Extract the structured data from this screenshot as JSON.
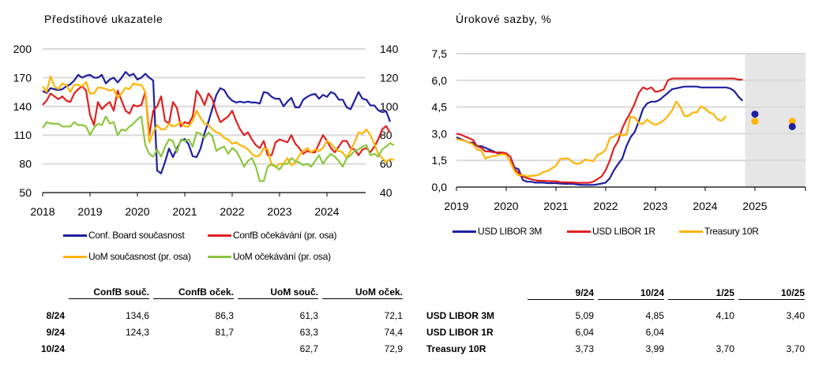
{
  "left_panel": {
    "title": "Předstihové ukazatele",
    "legend": [
      {
        "label": "Conf. Board současnost",
        "color": "#1f1fa0"
      },
      {
        "label": "ConfB očekávání (pr. osa)",
        "color": "#e02020"
      },
      {
        "label": "UoM současnost (pr. osa)",
        "color": "#ffb400"
      },
      {
        "label": "UoM očekávání (pr. osa)",
        "color": "#8cc63f"
      }
    ],
    "table": {
      "columns": [
        "ConfB souč.",
        "ConfB oček.",
        "UoM souč.",
        "UoM oček."
      ],
      "rows": [
        {
          "label": "8/24",
          "values": [
            "134,6",
            "86,3",
            "61,3",
            "72,1"
          ]
        },
        {
          "label": "9/24",
          "values": [
            "124,3",
            "81,7",
            "63,3",
            "74,4"
          ]
        },
        {
          "label": "10/24",
          "values": [
            "",
            "",
            "62,7",
            "72,9"
          ]
        }
      ]
    }
  },
  "right_panel": {
    "title": "Úrokové sazby, %",
    "legend": [
      {
        "label": "USD LIBOR 3M",
        "color": "#1f1fa0"
      },
      {
        "label": "USD LIBOR 1R",
        "color": "#e02020"
      },
      {
        "label": "Treasury 10R",
        "color": "#ffb400"
      }
    ],
    "table": {
      "columns": [
        "9/24",
        "10/24",
        "1/25",
        "10/25"
      ],
      "rows": [
        {
          "label": "USD LIBOR 3M",
          "values": [
            "5,09",
            "4,85",
            "4,10",
            "3,40"
          ]
        },
        {
          "label": "USD LIBOR 1R",
          "values": [
            "6,04",
            "6,04",
            "",
            ""
          ]
        },
        {
          "label": "Treasury 10R",
          "values": [
            "3,73",
            "3,99",
            "3,70",
            "3,70"
          ]
        }
      ]
    }
  },
  "chart_data": [
    {
      "type": "line",
      "title": "Předstihové ukazatele",
      "x_start": "2018-01",
      "x_ticks": [
        "2018",
        "2019",
        "2020",
        "2021",
        "2022",
        "2023",
        "2024"
      ],
      "y_left": {
        "ticks": [
          "50",
          "80",
          "110",
          "140",
          "170",
          "200"
        ],
        "range": [
          50,
          200
        ]
      },
      "y_right": {
        "ticks": [
          "40",
          "60",
          "80",
          "100",
          "120",
          "140"
        ],
        "range": [
          40,
          140
        ]
      },
      "grid": true,
      "legend_position": "bottom",
      "series": [
        {
          "name": "Conf. Board současnost",
          "axis": "left",
          "color": "#1f1fa0",
          "values": [
            156,
            154,
            159,
            158,
            157,
            158,
            161,
            163,
            167,
            173,
            170,
            172,
            173,
            170,
            170,
            173,
            164,
            168,
            170,
            165,
            170,
            176,
            172,
            174,
            168,
            170,
            174,
            170,
            167,
            73,
            70,
            82,
            96,
            87,
            96,
            104,
            106,
            100,
            88,
            87,
            96,
            112,
            124,
            138,
            152,
            159,
            157,
            150,
            146,
            144,
            145,
            144,
            145,
            144,
            144,
            143,
            155,
            154,
            150,
            148,
            148,
            140,
            145,
            149,
            139,
            139,
            147,
            150,
            152,
            153,
            148,
            152,
            150,
            155,
            153,
            147,
            147,
            139,
            137,
            146,
            155,
            148,
            147,
            141,
            141,
            136,
            134,
            135,
            124
          ]
        },
        {
          "name": "ConfB očekávání (pr. osa)",
          "axis": "right",
          "color": "#e02020",
          "values": [
            101,
            104,
            109,
            107,
            105,
            107,
            104,
            103,
            109,
            112,
            114,
            111,
            94,
            87,
            103,
            98,
            101,
            103,
            97,
            111,
            104,
            97,
            95,
            101,
            100,
            101,
            110,
            80,
            97,
            100,
            107,
            90,
            88,
            103,
            99,
            86,
            89,
            88,
            93,
            111,
            107,
            101,
            109,
            105,
            96,
            89,
            91,
            93,
            97,
            90,
            84,
            80,
            82,
            77,
            73,
            71,
            76,
            66,
            66,
            75,
            77,
            76,
            75,
            80,
            74,
            71,
            67,
            69,
            68,
            68,
            74,
            80,
            76,
            71,
            68,
            72,
            76,
            76,
            71,
            70,
            66,
            70,
            71,
            68,
            72,
            77,
            84,
            86.3,
            81.7
          ]
        },
        {
          "name": "UoM současnost (pr. osa)",
          "axis": "right",
          "color": "#ffb400",
          "values": [
            114,
            110,
            121,
            114,
            112,
            116,
            115,
            110,
            115,
            115,
            114,
            117,
            109,
            109,
            113,
            113,
            112,
            111,
            112,
            106,
            109,
            113,
            112,
            116,
            115,
            115,
            110,
            75,
            82,
            87,
            84,
            84,
            88,
            86,
            87,
            89,
            86,
            86,
            90,
            97,
            92,
            88,
            87,
            84,
            82,
            81,
            78,
            77,
            74,
            75,
            73,
            72,
            70,
            67,
            65,
            66,
            71,
            70,
            59,
            58,
            60,
            60,
            64,
            59,
            61,
            66,
            69,
            71,
            68,
            70,
            69,
            71,
            76,
            74,
            71,
            69,
            68,
            64,
            69,
            75,
            82,
            81,
            84,
            80,
            74,
            67,
            64,
            61.3,
            63.3,
            62.7
          ]
        },
        {
          "name": "UoM očekávání (pr. osa)",
          "axis": "right",
          "color": "#8cc63f",
          "values": [
            85,
            89,
            88,
            88,
            88,
            86,
            86,
            86,
            89,
            87,
            87,
            86,
            80,
            85,
            88,
            87,
            93,
            88,
            89,
            80,
            84,
            83,
            86,
            88,
            91,
            93,
            73,
            67,
            65,
            70,
            65,
            72,
            77,
            76,
            68,
            77,
            76,
            77,
            72,
            82,
            81,
            78,
            82,
            79,
            69,
            71,
            72,
            67,
            71,
            69,
            64,
            58,
            62,
            64,
            58,
            48,
            48,
            58,
            60,
            58,
            56,
            60,
            60,
            64,
            62,
            61,
            59,
            60,
            58,
            62,
            66,
            60,
            64,
            67,
            65,
            62,
            58,
            64,
            66,
            69,
            70,
            72,
            73,
            66,
            67,
            65,
            70,
            72.1,
            74.4,
            72.9
          ]
        }
      ]
    },
    {
      "type": "line",
      "title": "Úrokové sazby, %",
      "x_start": "2019-01",
      "x_ticks": [
        "2019",
        "2020",
        "2021",
        "2022",
        "2023",
        "2024",
        "2025"
      ],
      "y": {
        "ticks": [
          "0,0",
          "1,5",
          "3,0",
          "4,5",
          "6,0",
          "7,5"
        ],
        "range": [
          0,
          7.5
        ]
      },
      "grid": true,
      "forecast_region_start": "2024-11",
      "legend_position": "bottom",
      "series": [
        {
          "name": "USD LIBOR 3M",
          "color": "#1f1fa0",
          "values": [
            2.8,
            2.7,
            2.6,
            2.5,
            2.5,
            2.3,
            2.3,
            2.2,
            2.1,
            2.0,
            1.9,
            1.9,
            1.9,
            1.7,
            1.1,
            1.0,
            0.4,
            0.3,
            0.3,
            0.25,
            0.25,
            0.25,
            0.22,
            0.22,
            0.22,
            0.2,
            0.18,
            0.18,
            0.18,
            0.15,
            0.13,
            0.12,
            0.12,
            0.12,
            0.15,
            0.2,
            0.25,
            0.5,
            0.95,
            1.3,
            1.6,
            2.3,
            2.8,
            3.1,
            3.7,
            4.4,
            4.7,
            4.8,
            4.8,
            4.9,
            5.1,
            5.3,
            5.5,
            5.55,
            5.6,
            5.65,
            5.65,
            5.65,
            5.65,
            5.6,
            5.6,
            5.6,
            5.6,
            5.6,
            5.6,
            5.6,
            5.55,
            5.4,
            5.09,
            4.85
          ],
          "forecast": [
            {
              "x": "2025-01",
              "value": 4.1
            },
            {
              "x": "2025-10",
              "value": 3.4
            }
          ]
        },
        {
          "name": "USD LIBOR 1R",
          "color": "#e02020",
          "values": [
            3.0,
            2.95,
            2.85,
            2.75,
            2.65,
            2.3,
            2.2,
            2.0,
            2.0,
            1.95,
            1.95,
            1.95,
            1.9,
            1.7,
            1.0,
            0.8,
            0.6,
            0.5,
            0.45,
            0.38,
            0.35,
            0.35,
            0.34,
            0.33,
            0.33,
            0.28,
            0.27,
            0.26,
            0.26,
            0.24,
            0.24,
            0.24,
            0.24,
            0.3,
            0.45,
            0.6,
            0.95,
            1.5,
            2.2,
            2.6,
            3.3,
            3.8,
            4.2,
            4.7,
            5.3,
            5.6,
            5.5,
            5.6,
            5.35,
            5.4,
            5.5,
            6.0,
            6.1,
            6.1,
            6.1,
            6.1,
            6.1,
            6.1,
            6.1,
            6.1,
            6.1,
            6.1,
            6.1,
            6.1,
            6.1,
            6.1,
            6.1,
            6.1,
            6.04,
            6.04
          ]
        },
        {
          "name": "Treasury 10R",
          "color": "#ffb400",
          "values": [
            2.7,
            2.65,
            2.6,
            2.5,
            2.4,
            2.1,
            2.05,
            1.6,
            1.7,
            1.75,
            1.8,
            1.85,
            1.8,
            1.4,
            0.9,
            0.65,
            0.68,
            0.6,
            0.62,
            0.65,
            0.7,
            0.85,
            0.9,
            1.05,
            1.2,
            1.58,
            1.6,
            1.6,
            1.4,
            1.3,
            1.35,
            1.55,
            1.5,
            1.45,
            1.8,
            1.9,
            2.1,
            2.75,
            2.85,
            3.0,
            2.9,
            2.95,
            3.95,
            3.9,
            3.6,
            3.55,
            3.8,
            3.6,
            3.5,
            3.6,
            3.75,
            4.0,
            4.3,
            4.8,
            4.5,
            4.0,
            4.0,
            4.2,
            4.2,
            4.55,
            4.4,
            4.2,
            4.1,
            3.8,
            3.73,
            3.99
          ],
          "forecast": [
            {
              "x": "2025-01",
              "value": 3.7
            },
            {
              "x": "2025-10",
              "value": 3.7
            }
          ]
        }
      ]
    }
  ]
}
